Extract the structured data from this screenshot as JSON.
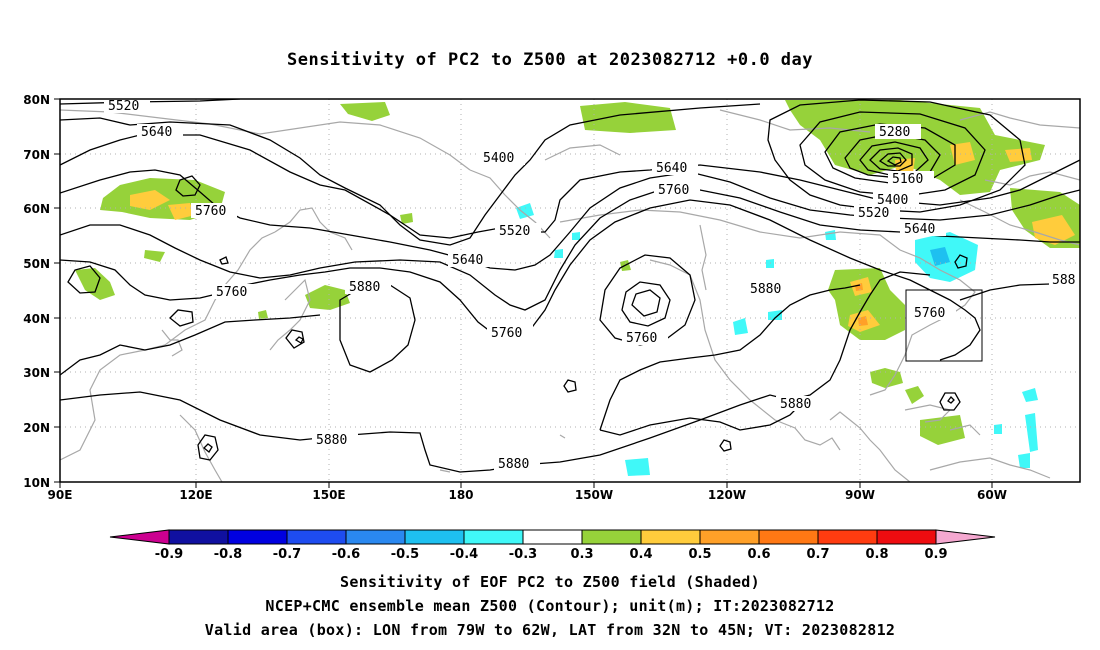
{
  "title": "Sensitivity of PC2 to Z500 at 2023082712 +0.0 day",
  "lon_ticks": [
    "90E",
    "120E",
    "150E",
    "180",
    "150W",
    "120W",
    "90W",
    "60W"
  ],
  "lat_ticks": [
    "80N",
    "70N",
    "60N",
    "50N",
    "40N",
    "30N",
    "20N",
    "10N"
  ],
  "contour_labels": [
    "5520",
    "5640",
    "5400",
    "5640",
    "5760",
    "5280",
    "5160",
    "5400",
    "5520",
    "5640",
    "5760",
    "5520",
    "5640",
    "5760",
    "5880",
    "5760",
    "5760",
    "5880",
    "5760",
    "5880",
    "5880",
    "5880",
    "5880",
    "588"
  ],
  "colorbar": {
    "labels": [
      "-0.9",
      "-0.8",
      "-0.7",
      "-0.6",
      "-0.5",
      "-0.4",
      "-0.3",
      "0.3",
      "0.4",
      "0.5",
      "0.6",
      "0.7",
      "0.8",
      "0.9"
    ],
    "colors": [
      "#cc0090",
      "#1010a0",
      "#0000e0",
      "#1e4cf0",
      "#2a88f0",
      "#1ec0f0",
      "#40f8f8",
      "#ffffff",
      "#96d23a",
      "#ffcc3c",
      "#ffa028",
      "#ff7814",
      "#ff3c10",
      "#ee0c10",
      "#f5a8d0"
    ]
  },
  "valid_box": {
    "lon_w": "79W",
    "lon_e": "62W",
    "lat_s": "32N",
    "lat_n": "45N"
  },
  "footer": {
    "line1": "Sensitivity of EOF PC2 to Z500 field (Shaded)",
    "line2": "NCEP+CMC ensemble mean Z500 (Contour); unit(m); IT:2023082712",
    "line3": "Valid area (box): LON from 79W to 62W, LAT from 32N to 45N; VT: 2023082812"
  }
}
